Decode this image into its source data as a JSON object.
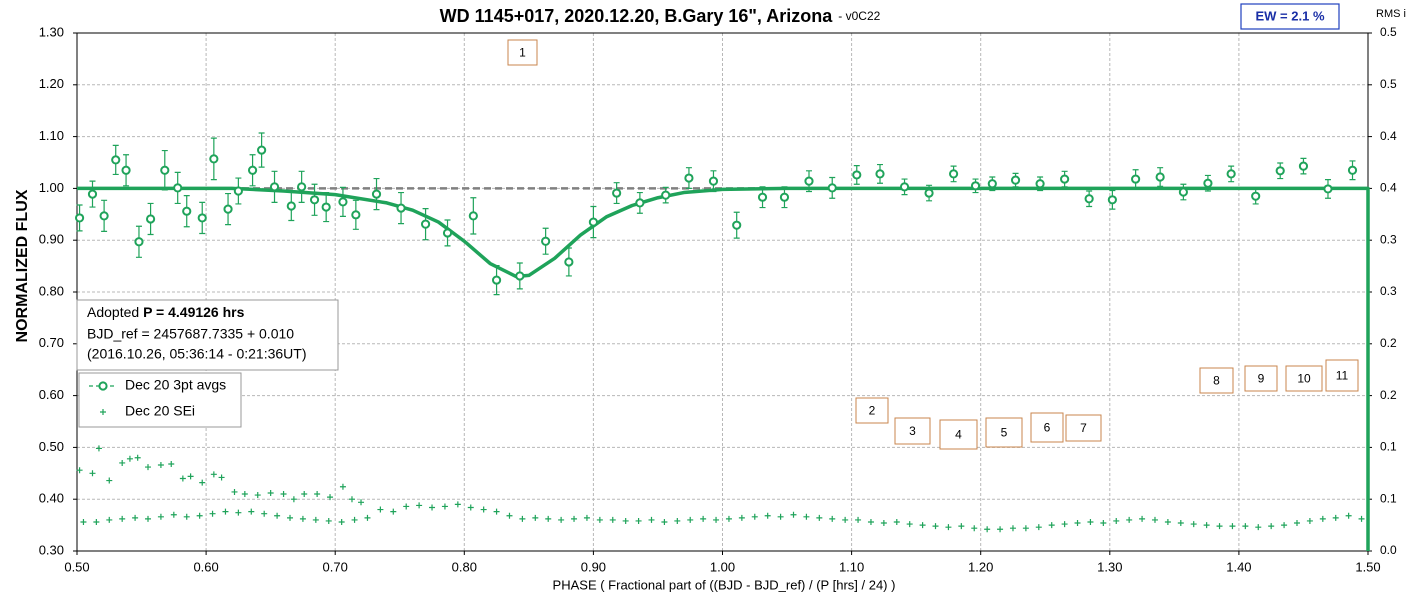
{
  "chart_data": {
    "type": "scatter",
    "title": "WD 1145+017, 2020.12.20, B.Gary 16\", Arizona",
    "subtitle": "- v0C22",
    "xlabel": "PHASE ( Fractional part of ((BJD - BJD_ref) / (P [hrs] / 24) )",
    "ylabel": "NORMALIZED FLUX",
    "y2label": "RMS i",
    "badge": "EW = 2.1 %",
    "note": {
      "prefix": "Adopted ",
      "bold": "P = 4.49126 hrs",
      "lines": [
        "BJD_ref = 2457687.7335 + 0.010",
        "(2016.10.26, 05:36:14 - 0:21:36UT)"
      ]
    },
    "annotations": [
      "1",
      "2",
      "3",
      "4",
      "5",
      "6",
      "7",
      "8",
      "9",
      "10",
      "11"
    ],
    "xlim": [
      0.5,
      1.5
    ],
    "xticks": [
      {
        "value": 0.5,
        "label": "0.50"
      },
      {
        "value": 0.6,
        "label": "0.60"
      },
      {
        "value": 0.7,
        "label": "0.70"
      },
      {
        "value": 0.8,
        "label": "0.80"
      },
      {
        "value": 0.9,
        "label": "0.90"
      },
      {
        "value": 1.0,
        "label": "1.00"
      },
      {
        "value": 1.1,
        "label": "1.10"
      },
      {
        "value": 1.2,
        "label": "1.20"
      },
      {
        "value": 1.3,
        "label": "1.30"
      },
      {
        "value": 1.4,
        "label": "1.40"
      },
      {
        "value": 1.5,
        "label": "1.50"
      }
    ],
    "ylim": [
      0.3,
      1.3
    ],
    "yticks": [
      {
        "value": 0.3,
        "label": "0.30"
      },
      {
        "value": 0.4,
        "label": "0.40"
      },
      {
        "value": 0.5,
        "label": "0.50"
      },
      {
        "value": 0.6,
        "label": "0.60"
      },
      {
        "value": 0.7,
        "label": "0.70"
      },
      {
        "value": 0.8,
        "label": "0.80"
      },
      {
        "value": 0.9,
        "label": "0.90"
      },
      {
        "value": 1.0,
        "label": "1.00"
      },
      {
        "value": 1.1,
        "label": "1.10"
      },
      {
        "value": 1.2,
        "label": "1.20"
      },
      {
        "value": 1.3,
        "label": "1.30"
      }
    ],
    "y2lim": [
      0,
      0.5
    ],
    "y2ticks": [
      {
        "value": 0,
        "label": "0.0"
      },
      {
        "value": 0.05,
        "label": "0.1"
      },
      0.1,
      {
        "value": 0.15,
        "label": "0.2"
      },
      0.2,
      {
        "value": 0.25,
        "label": "0.3"
      },
      0.3,
      {
        "value": 0.35,
        "label": "0.4"
      },
      0.4,
      {
        "value": 0.45,
        "label": "0.5"
      },
      0.5
    ],
    "grid": true,
    "legend": "upper left",
    "reference_line": {
      "value": 1.0,
      "color": "#808080"
    },
    "model": {
      "color": "#1fa35a",
      "x": [
        0.5,
        0.62,
        0.66,
        0.7,
        0.74,
        0.76,
        0.78,
        0.8,
        0.82,
        0.84,
        0.85,
        0.87,
        0.89,
        0.91,
        0.93,
        0.95,
        0.97,
        1.0,
        1.05,
        1.5,
        1.5
      ],
      "values": [
        1.0,
        1.0,
        0.995,
        0.988,
        0.972,
        0.958,
        0.935,
        0.898,
        0.855,
        0.83,
        0.832,
        0.865,
        0.91,
        0.945,
        0.967,
        0.982,
        0.992,
        0.998,
        1.0,
        1.0,
        0.3
      ]
    },
    "series": [
      {
        "name": "Dec 20 3pt avgs",
        "color": "#1fa35a",
        "x": [
          0.502,
          0.512,
          0.521,
          0.53,
          0.538,
          0.548,
          0.557,
          0.568,
          0.578,
          0.585,
          0.597,
          0.606,
          0.617,
          0.625,
          0.636,
          0.643,
          0.653,
          0.666,
          0.674,
          0.684,
          0.693,
          0.706,
          0.716,
          0.732,
          0.751,
          0.77,
          0.787,
          0.807,
          0.825,
          0.843,
          0.863,
          0.881,
          0.9,
          0.918,
          0.936,
          0.956,
          0.974,
          0.993,
          1.011,
          1.031,
          1.048,
          1.067,
          1.085,
          1.104,
          1.122,
          1.141,
          1.16,
          1.179,
          1.196,
          1.209,
          1.227,
          1.246,
          1.265,
          1.284,
          1.302,
          1.32,
          1.339,
          1.357,
          1.376,
          1.394,
          1.413,
          1.432,
          1.45,
          1.469,
          1.488
        ],
        "values": [
          0.943,
          0.989,
          0.947,
          1.055,
          1.035,
          0.897,
          0.941,
          1.035,
          1.001,
          0.956,
          0.943,
          1.057,
          0.96,
          0.995,
          1.035,
          1.074,
          1.003,
          0.966,
          1.003,
          0.978,
          0.964,
          0.974,
          0.949,
          0.989,
          0.962,
          0.931,
          0.914,
          0.947,
          0.823,
          0.831,
          0.898,
          0.858,
          0.935,
          0.991,
          0.972,
          0.987,
          1.02,
          1.014,
          0.929,
          0.983,
          0.983,
          1.014,
          1.001,
          1.026,
          1.028,
          1.003,
          0.991,
          1.028,
          1.005,
          1.009,
          1.016,
          1.009,
          1.018,
          0.98,
          0.978,
          1.018,
          1.022,
          0.993,
          1.01,
          1.028,
          0.985,
          1.034,
          1.043,
          0.999,
          1.035
        ],
        "errors": [
          0.025,
          0.025,
          0.03,
          0.028,
          0.03,
          0.03,
          0.03,
          0.038,
          0.03,
          0.03,
          0.03,
          0.04,
          0.03,
          0.025,
          0.03,
          0.033,
          0.03,
          0.028,
          0.03,
          0.03,
          0.028,
          0.028,
          0.028,
          0.03,
          0.03,
          0.03,
          0.025,
          0.035,
          0.028,
          0.025,
          0.025,
          0.027,
          0.03,
          0.02,
          0.02,
          0.015,
          0.02,
          0.02,
          0.025,
          0.02,
          0.02,
          0.02,
          0.02,
          0.018,
          0.018,
          0.015,
          0.015,
          0.015,
          0.013,
          0.013,
          0.013,
          0.013,
          0.015,
          0.015,
          0.018,
          0.018,
          0.018,
          0.015,
          0.015,
          0.015,
          0.015,
          0.015,
          0.015,
          0.018,
          0.018
        ]
      },
      {
        "name": "Dec 20 SEi",
        "color": "#1fa35a",
        "axis": "y2",
        "x": [
          0.505,
          0.515,
          0.525,
          0.535,
          0.545,
          0.555,
          0.565,
          0.575,
          0.585,
          0.595,
          0.605,
          0.615,
          0.625,
          0.635,
          0.645,
          0.655,
          0.665,
          0.675,
          0.685,
          0.695,
          0.705,
          0.715,
          0.725,
          0.735,
          0.745,
          0.755,
          0.765,
          0.775,
          0.785,
          0.795,
          0.805,
          0.815,
          0.825,
          0.835,
          0.845,
          0.855,
          0.865,
          0.875,
          0.885,
          0.895,
          0.905,
          0.915,
          0.925,
          0.935,
          0.945,
          0.955,
          0.965,
          0.975,
          0.985,
          0.995,
          1.005,
          1.015,
          1.025,
          1.035,
          1.045,
          1.055,
          1.065,
          1.075,
          1.085,
          1.095,
          1.105,
          1.115,
          1.125,
          1.135,
          1.145,
          1.155,
          1.165,
          1.175,
          1.185,
          1.195,
          1.205,
          1.215,
          1.225,
          1.235,
          1.245,
          1.255,
          1.265,
          1.275,
          1.285,
          1.295,
          1.305,
          1.315,
          1.325,
          1.335,
          1.345,
          1.355,
          1.365,
          1.375,
          1.385,
          1.395,
          1.405,
          1.415,
          1.425,
          1.435,
          1.445,
          1.455,
          1.465,
          1.475,
          1.485,
          1.495,
          0.502,
          0.512,
          0.517,
          0.525,
          0.535,
          0.541,
          0.547,
          0.555,
          0.565,
          0.573,
          0.582,
          0.588,
          0.597,
          0.606,
          0.612,
          0.622,
          0.63,
          0.64,
          0.65,
          0.66,
          0.668,
          0.676,
          0.686,
          0.696,
          0.706,
          0.713,
          0.72
        ],
        "values": [
          0.028,
          0.028,
          0.03,
          0.031,
          0.032,
          0.031,
          0.033,
          0.035,
          0.033,
          0.034,
          0.036,
          0.038,
          0.037,
          0.038,
          0.036,
          0.034,
          0.032,
          0.031,
          0.03,
          0.029,
          0.028,
          0.03,
          0.032,
          0.04,
          0.038,
          0.043,
          0.044,
          0.042,
          0.043,
          0.045,
          0.042,
          0.04,
          0.038,
          0.034,
          0.031,
          0.032,
          0.031,
          0.03,
          0.031,
          0.032,
          0.03,
          0.03,
          0.029,
          0.029,
          0.03,
          0.028,
          0.029,
          0.03,
          0.031,
          0.03,
          0.031,
          0.032,
          0.033,
          0.034,
          0.033,
          0.035,
          0.033,
          0.032,
          0.031,
          0.03,
          0.03,
          0.028,
          0.027,
          0.028,
          0.026,
          0.025,
          0.024,
          0.023,
          0.024,
          0.022,
          0.021,
          0.021,
          0.022,
          0.022,
          0.023,
          0.025,
          0.026,
          0.027,
          0.028,
          0.027,
          0.029,
          0.03,
          0.031,
          0.03,
          0.028,
          0.027,
          0.026,
          0.025,
          0.024,
          0.024,
          0.024,
          0.023,
          0.024,
          0.025,
          0.027,
          0.029,
          0.031,
          0.032,
          0.034,
          0.031,
          0.078,
          0.075,
          0.099,
          0.068,
          0.085,
          0.089,
          0.09,
          0.081,
          0.083,
          0.084,
          0.07,
          0.072,
          0.066,
          0.074,
          0.071,
          0.057,
          0.055,
          0.054,
          0.056,
          0.055,
          0.05,
          0.055,
          0.055,
          0.052,
          0.062,
          0.05,
          0.047
        ]
      }
    ]
  }
}
